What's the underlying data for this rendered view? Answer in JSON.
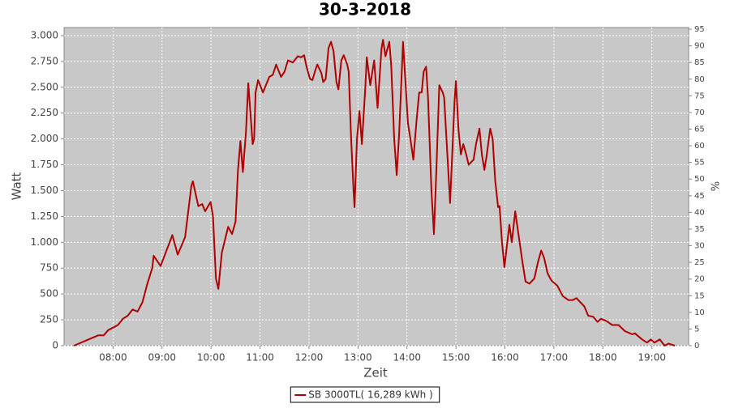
{
  "chart_data": {
    "type": "line",
    "title": "30-3-2018",
    "x_label": "Zeit",
    "y_label": "Watt",
    "y2_label": "%",
    "x": [
      7.2,
      7.5,
      7.7,
      7.81,
      7.9,
      8.0,
      8.1,
      8.2,
      8.3,
      8.4,
      8.5,
      8.6,
      8.7,
      8.8,
      8.83,
      8.97,
      9.21,
      9.32,
      9.47,
      9.6,
      9.63,
      9.74,
      9.82,
      9.88,
      9.99,
      10.04,
      10.1,
      10.15,
      10.22,
      10.35,
      10.43,
      10.5,
      10.55,
      10.6,
      10.65,
      10.71,
      10.76,
      10.85,
      10.88,
      10.91,
      10.96,
      11.06,
      11.19,
      11.26,
      11.33,
      11.43,
      11.5,
      11.57,
      11.67,
      11.77,
      11.84,
      11.9,
      11.95,
      12.02,
      12.07,
      12.14,
      12.17,
      12.25,
      12.29,
      12.34,
      12.4,
      12.45,
      12.5,
      12.56,
      12.6,
      12.66,
      12.71,
      12.78,
      12.81,
      12.86,
      12.91,
      12.93,
      12.98,
      13.03,
      13.08,
      13.15,
      13.18,
      13.25,
      13.33,
      13.4,
      13.48,
      13.51,
      13.56,
      13.64,
      13.68,
      13.74,
      13.79,
      13.84,
      13.92,
      13.97,
      14.02,
      14.07,
      14.13,
      14.2,
      14.25,
      14.3,
      14.34,
      14.39,
      14.43,
      14.5,
      14.55,
      14.6,
      14.66,
      14.73,
      14.76,
      14.83,
      14.88,
      14.91,
      14.97,
      15.0,
      15.05,
      15.1,
      15.15,
      15.21,
      15.26,
      15.36,
      15.41,
      15.48,
      15.53,
      15.58,
      15.63,
      15.7,
      15.75,
      15.8,
      15.86,
      15.89,
      15.94,
      15.99,
      16.06,
      16.09,
      16.14,
      16.21,
      16.27,
      16.36,
      16.42,
      16.5,
      16.6,
      16.67,
      16.74,
      16.8,
      16.87,
      16.95,
      17.07,
      17.18,
      17.3,
      17.38,
      17.46,
      17.62,
      17.7,
      17.8,
      17.89,
      17.96,
      18.07,
      18.19,
      18.32,
      18.45,
      18.6,
      18.65,
      18.8,
      18.9,
      18.98,
      19.05,
      19.16,
      19.26,
      19.34,
      19.47
    ],
    "series": [
      {
        "name": "SB 3000TL( 16,289 kWh )",
        "color": "#b00000",
        "values": [
          0,
          60,
          100,
          100,
          150,
          175,
          200,
          260,
          290,
          350,
          330,
          420,
          600,
          750,
          870,
          770,
          1070,
          880,
          1050,
          1550,
          1590,
          1350,
          1370,
          1300,
          1390,
          1250,
          650,
          550,
          900,
          1150,
          1080,
          1200,
          1700,
          1980,
          1680,
          2050,
          2540,
          1950,
          2000,
          2450,
          2570,
          2450,
          2600,
          2620,
          2720,
          2600,
          2650,
          2760,
          2740,
          2800,
          2790,
          2810,
          2700,
          2580,
          2570,
          2680,
          2720,
          2640,
          2550,
          2580,
          2880,
          2940,
          2850,
          2550,
          2480,
          2760,
          2810,
          2720,
          2650,
          2000,
          1500,
          1340,
          2000,
          2270,
          1950,
          2500,
          2790,
          2520,
          2760,
          2300,
          2870,
          2960,
          2800,
          2940,
          2700,
          2000,
          1650,
          2050,
          2940,
          2550,
          2150,
          2000,
          1800,
          2200,
          2450,
          2450,
          2650,
          2700,
          2400,
          1500,
          1080,
          1700,
          2520,
          2450,
          2400,
          1800,
          1380,
          1700,
          2350,
          2560,
          2100,
          1850,
          1950,
          1850,
          1750,
          1800,
          1950,
          2100,
          1850,
          1700,
          1850,
          2100,
          2000,
          1600,
          1340,
          1350,
          1000,
          760,
          1050,
          1170,
          1000,
          1300,
          1100,
          800,
          620,
          600,
          650,
          800,
          920,
          850,
          700,
          630,
          580,
          480,
          440,
          440,
          460,
          380,
          290,
          280,
          230,
          260,
          240,
          200,
          200,
          140,
          110,
          120,
          60,
          30,
          60,
          30,
          60,
          0,
          20,
          0
        ]
      }
    ],
    "xlim": [
      7.0,
      19.75
    ],
    "xticks": [
      {
        "value": 8,
        "label": "08:00"
      },
      {
        "value": 9,
        "label": "09:00"
      },
      {
        "value": 10,
        "label": "10:00"
      },
      {
        "value": 11,
        "label": "11:00"
      },
      {
        "value": 12,
        "label": "12:00"
      },
      {
        "value": 13,
        "label": "13:00"
      },
      {
        "value": 14,
        "label": "14:00"
      },
      {
        "value": 15,
        "label": "15:00"
      },
      {
        "value": 16,
        "label": "16:00"
      },
      {
        "value": 17,
        "label": "17:00"
      },
      {
        "value": 18,
        "label": "18:00"
      },
      {
        "value": 19,
        "label": "19:00"
      }
    ],
    "ylim": [
      0,
      3078
    ],
    "yticks": [
      0,
      250,
      500,
      750,
      {
        "value": 1000,
        "label": "1.000"
      },
      {
        "value": 1250,
        "label": "1.250"
      },
      {
        "value": 1500,
        "label": "1.500"
      },
      {
        "value": 1750,
        "label": "1.750"
      },
      {
        "value": 2000,
        "label": "2.000"
      },
      {
        "value": 2250,
        "label": "2.250"
      },
      {
        "value": 2500,
        "label": "2.500"
      },
      {
        "value": 2750,
        "label": "2.750"
      },
      {
        "value": 3000,
        "label": "3.000"
      }
    ],
    "y2lim": [
      0,
      95.5
    ],
    "y2ticks": [
      0,
      5,
      10,
      15,
      20,
      25,
      30,
      35,
      40,
      45,
      50,
      55,
      60,
      65,
      70,
      75,
      80,
      85,
      90,
      95
    ],
    "grid": true
  }
}
